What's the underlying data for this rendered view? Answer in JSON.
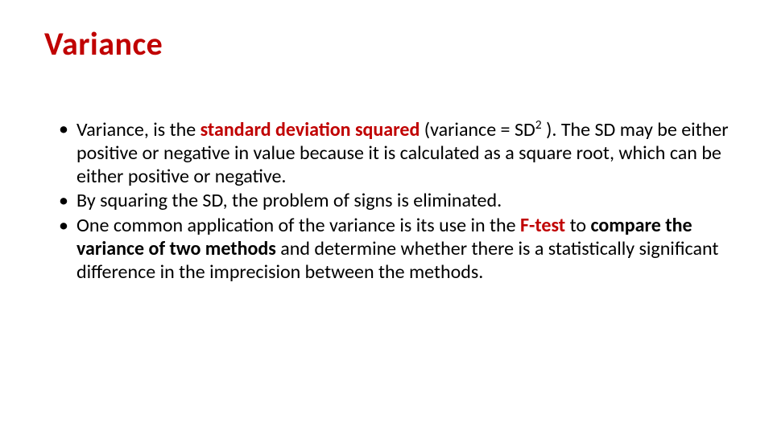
{
  "slide": {
    "title": "Variance",
    "title_color": "#c00000",
    "title_fontsize": 40,
    "title_weight": 700,
    "body_fontsize": 24,
    "body_color": "#000000",
    "highlight_color": "#c00000",
    "background_color": "#ffffff",
    "font_family": "Calibri",
    "bullets": [
      {
        "runs": [
          {
            "t": "Variance, is the ",
            "style": "normal"
          },
          {
            "t": "standard deviation squared",
            "style": "red-bold"
          },
          {
            "t": " (variance = SD",
            "style": "normal"
          },
          {
            "t": "2",
            "style": "sup"
          },
          {
            "t": " ). The SD may be either positive or negative in value because it is calculated as a square root, which can be either positive or negative.",
            "style": "normal"
          }
        ]
      },
      {
        "runs": [
          {
            "t": "By squaring the SD, the problem of signs is eliminated.",
            "style": "normal"
          }
        ]
      },
      {
        "runs": [
          {
            "t": "One common application of the variance is its use in the ",
            "style": "normal"
          },
          {
            "t": "F-test",
            "style": "red-bold"
          },
          {
            "t": " to ",
            "style": "normal"
          },
          {
            "t": "compare the variance of two methods",
            "style": "bold"
          },
          {
            "t": " and determine whether there is a statistically significant difference in the imprecision between the methods.",
            "style": "normal"
          }
        ]
      }
    ]
  }
}
